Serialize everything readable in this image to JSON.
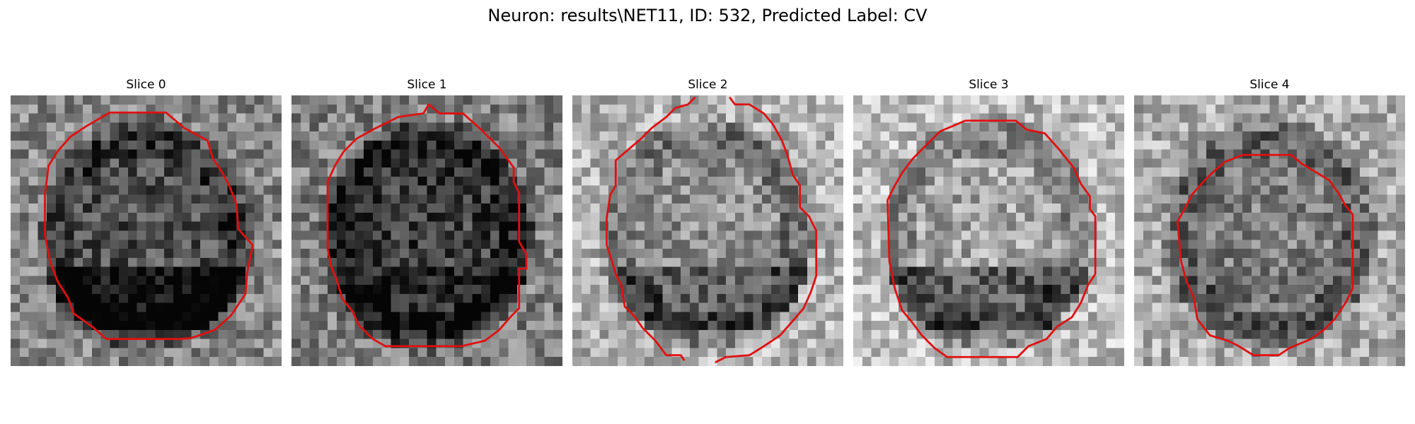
{
  "figure": {
    "title": "Neuron: results\\NET11, ID: 532, Predicted Label: CV"
  },
  "panels": [
    {
      "title": "Slice 0",
      "seed": 11,
      "base": 0.45,
      "dark_center": 0.14,
      "dark_bottom": 0.3
    },
    {
      "title": "Slice 1",
      "seed": 23,
      "base": 0.42,
      "dark_center": 0.18,
      "dark_bottom": 0.1
    },
    {
      "title": "Slice 2",
      "seed": 37,
      "base": 0.62,
      "dark_center": 0.06,
      "dark_bottom": 0.2
    },
    {
      "title": "Slice 3",
      "seed": 41,
      "base": 0.66,
      "dark_center": 0.02,
      "dark_bottom": 0.28
    },
    {
      "title": "Slice 4",
      "seed": 59,
      "base": 0.6,
      "dark_center": 0.1,
      "dark_bottom": 0.05
    }
  ],
  "colors": {
    "contour": "#e01010"
  }
}
